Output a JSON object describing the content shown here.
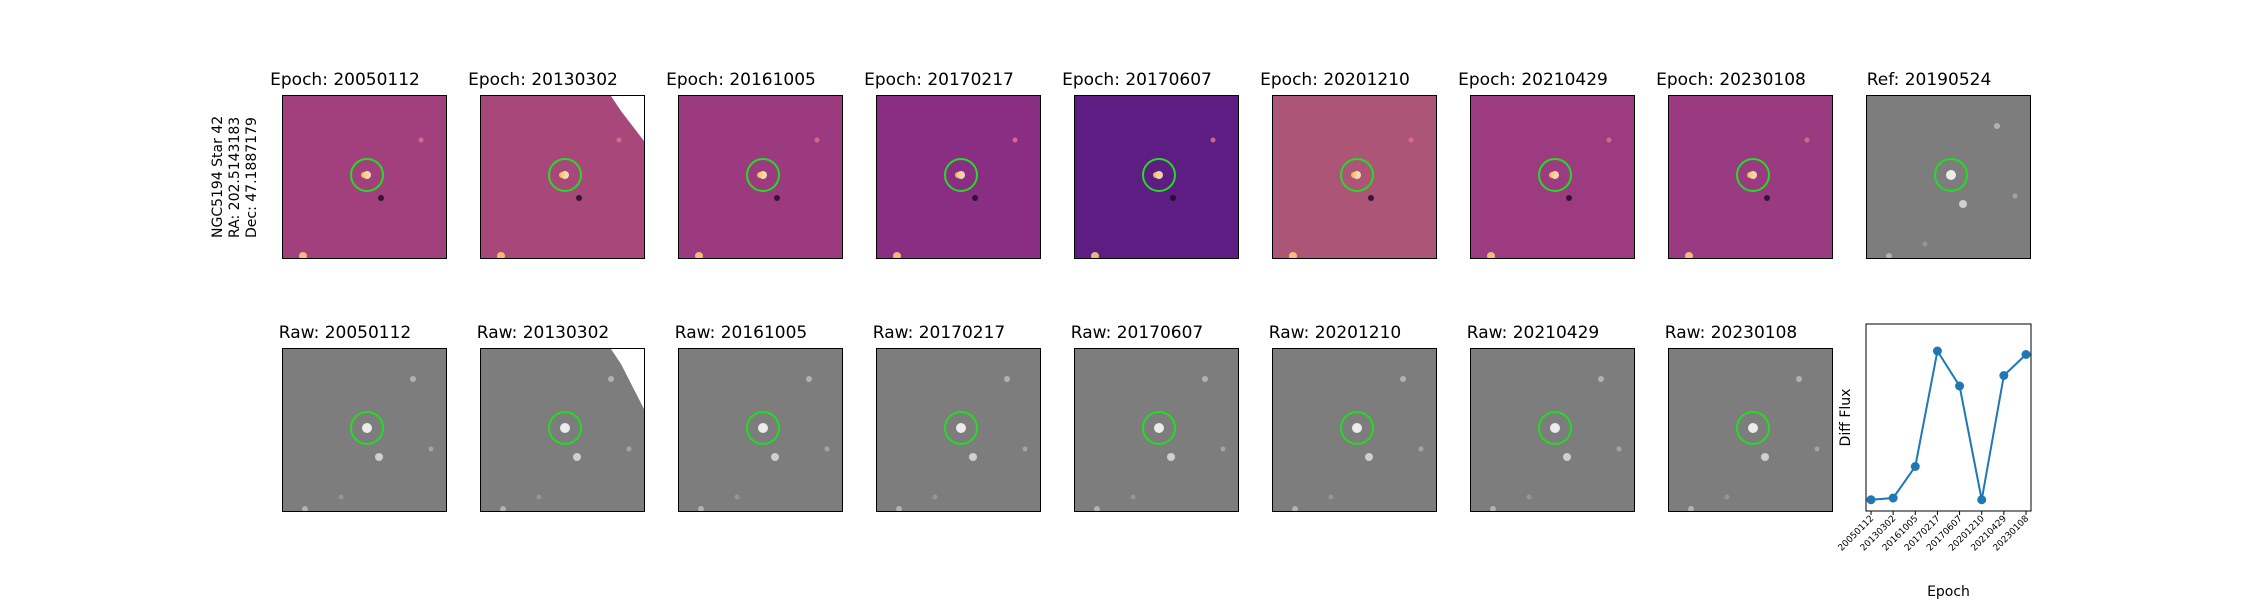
{
  "target": {
    "name": "NGC5194 Star 42",
    "ra": "RA: 202.5143183",
    "dec": "Dec: 47.1887179"
  },
  "diff_row": {
    "titles": [
      "Epoch: 20050112",
      "Epoch: 20130302",
      "Epoch: 20161005",
      "Epoch: 20170217",
      "Epoch: 20170607",
      "Epoch: 20201210",
      "Epoch: 20210429",
      "Epoch: 20230108"
    ],
    "ref_title": "Ref: 20190524"
  },
  "raw_row": {
    "titles": [
      "Raw: 20050112",
      "Raw: 20130302",
      "Raw: 20161005",
      "Raw: 20170217",
      "Raw: 20170607",
      "Raw: 20201210",
      "Raw: 20210429",
      "Raw: 20230108"
    ]
  },
  "colors": {
    "diff_bg": [
      "#a1407d",
      "#a8487a",
      "#9b3a7e",
      "#8a2e84",
      "#5e1d82",
      "#ad5577",
      "#9c3b80",
      "#9a3a80"
    ],
    "raw_bg": "#7d7d7d",
    "circle": "#22dd22",
    "series": "#1f77b4"
  },
  "chart_data": {
    "type": "line",
    "categories": [
      "20050112",
      "20130302",
      "20161005",
      "20170217",
      "20170607",
      "20201210",
      "20210429",
      "20230108"
    ],
    "values": [
      0.03,
      0.04,
      0.22,
      0.88,
      0.68,
      0.03,
      0.74,
      0.86
    ],
    "xlabel": "Epoch",
    "ylabel": "Diff Flux",
    "ylim": [
      0,
      1
    ],
    "grid": false
  }
}
